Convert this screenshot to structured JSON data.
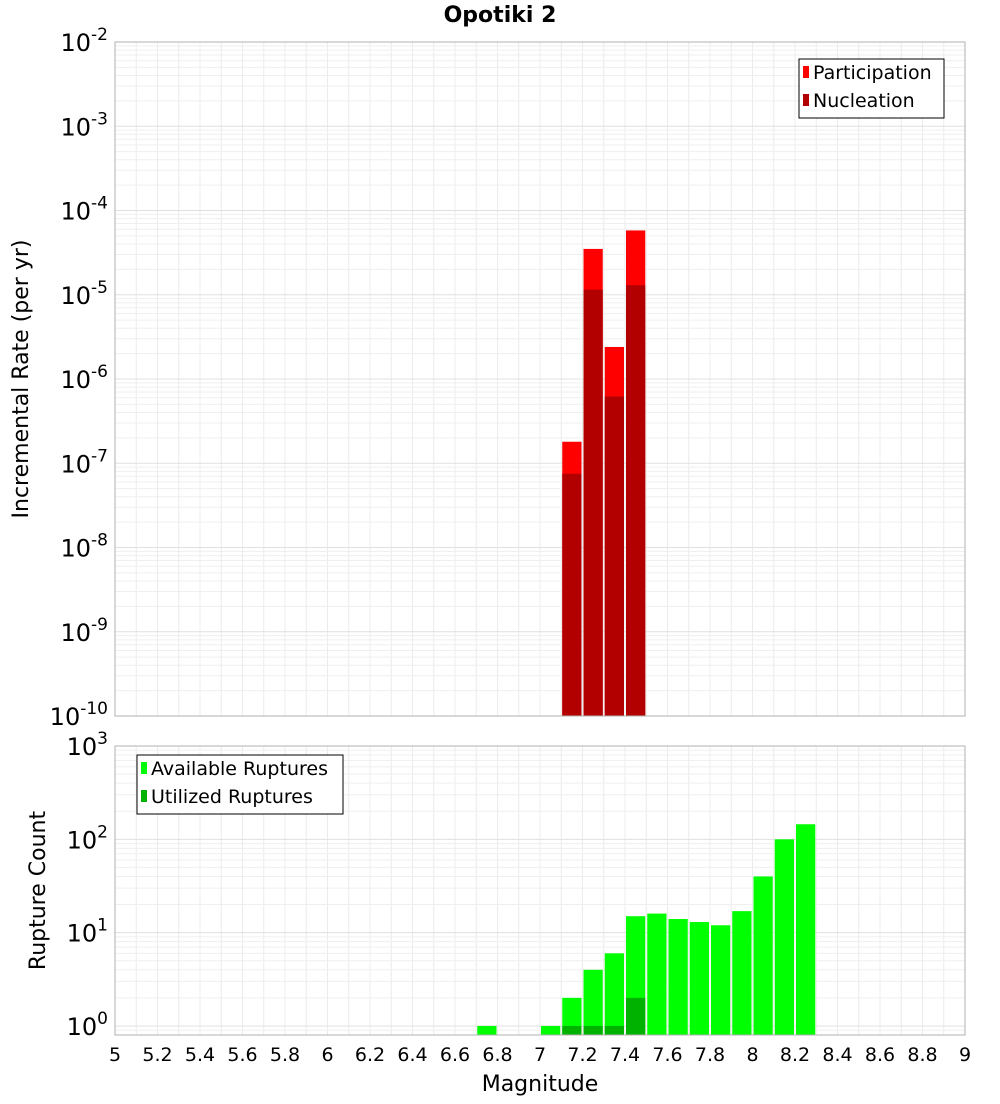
{
  "chart_data": {
    "title": "Opotiki 2",
    "xlabel": "Magnitude",
    "xlim": [
      5,
      9
    ],
    "xticks": [
      "5",
      "5.2",
      "5.4",
      "5.6",
      "5.8",
      "6",
      "6.2",
      "6.4",
      "6.6",
      "6.8",
      "7",
      "7.2",
      "7.4",
      "7.6",
      "7.8",
      "8",
      "8.2",
      "8.4",
      "8.6",
      "8.8",
      "9"
    ],
    "bin_width": 0.1,
    "panels": [
      {
        "type": "bar",
        "ylabel": "Incremental Rate (per yr)",
        "yscale": "log",
        "ylim": [
          1e-10,
          0.01
        ],
        "ytick_exponents": [
          "-10",
          "-9",
          "-8",
          "-7",
          "-6",
          "-5",
          "-4",
          "-3",
          "-2"
        ],
        "legend": "top-right",
        "series": [
          {
            "name": "Participation",
            "color": "#ff0000",
            "x": [
              7.15,
              7.25,
              7.35,
              7.45
            ],
            "values": [
              1.8e-07,
              3.5e-05,
              2.4e-06,
              5.8e-05
            ]
          },
          {
            "name": "Nucleation",
            "color": "#b20000",
            "x": [
              7.15,
              7.25,
              7.35,
              7.45
            ],
            "values": [
              7.5e-08,
              1.15e-05,
              6.2e-07,
              1.3e-05
            ]
          }
        ]
      },
      {
        "type": "bar",
        "ylabel": "Rupture Count",
        "yscale": "log",
        "ylim": [
          0.8,
          1000
        ],
        "ytick_exponents": [
          "0",
          "1",
          "2",
          "3"
        ],
        "legend": "top-left",
        "series": [
          {
            "name": "Available Ruptures",
            "color": "#00ff00",
            "x": [
              6.75,
              7.05,
              7.15,
              7.25,
              7.35,
              7.45,
              7.55,
              7.65,
              7.75,
              7.85,
              7.95,
              8.05,
              8.15,
              8.25
            ],
            "values": [
              1,
              1,
              2,
              4,
              6,
              15,
              16,
              14,
              13,
              12,
              17,
              40,
              100,
              145
            ]
          },
          {
            "name": "Utilized Ruptures",
            "color": "#00b200",
            "x": [
              7.15,
              7.25,
              7.35,
              7.45
            ],
            "values": [
              1,
              1,
              1,
              2
            ]
          }
        ]
      }
    ]
  }
}
